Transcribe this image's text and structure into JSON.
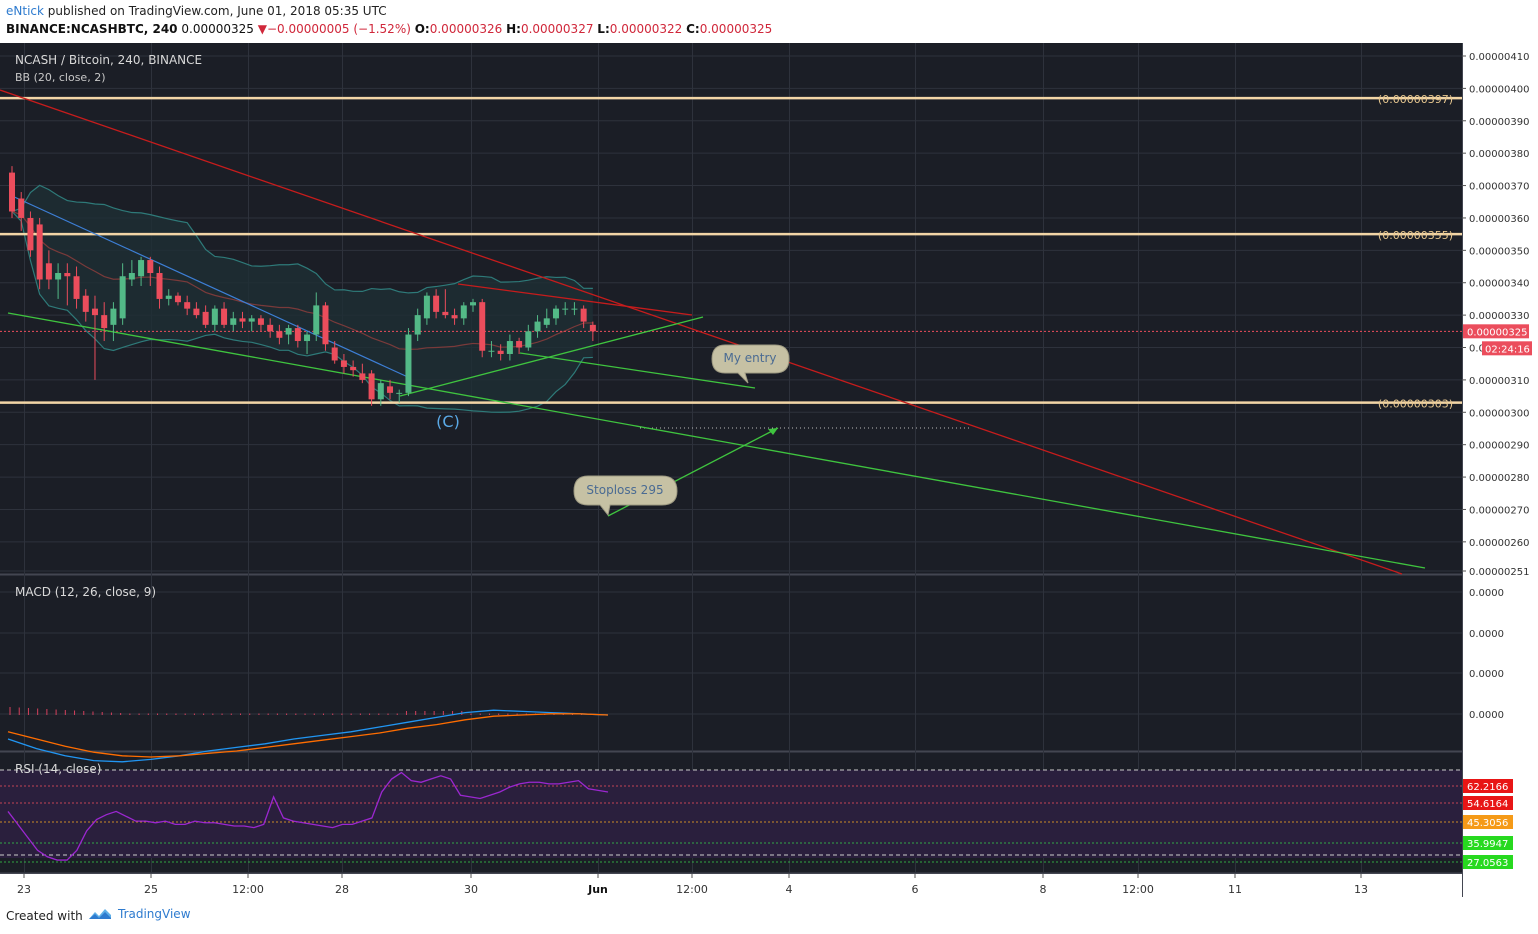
{
  "header": {
    "author": "eNtick",
    "published_text": "published on TradingView.com, June 01, 2018 05:35 UTC",
    "symbol": "BINANCE:NCASHBTC, 240",
    "last": "0.00000325",
    "change": "−0.00000005 (−1.52%)",
    "o_label": "O:",
    "o": "0.00000326",
    "h_label": "H:",
    "h": "0.00000327",
    "l_label": "L:",
    "l": "0.00000322",
    "c_label": "C:",
    "c": "0.00000325"
  },
  "footer": {
    "created": "Created with",
    "brand": "TradingView"
  },
  "colors": {
    "background": "#1b1e26",
    "grid": "#2e323c",
    "up": "#53b987",
    "down": "#eb4d5c",
    "bb_band": "#2e7a79",
    "bb_fill": "#1e2e35",
    "bb_basis": "#7a3a3a",
    "level_line": "#f2d5a6",
    "trend_red": "#c61c1c",
    "trend_green": "#3fc43f",
    "macd_line": "#2196f3",
    "signal_line": "#ff6d00",
    "hist": "#d4405c",
    "rsi": "#9b27d0",
    "callout_bg": "#c6c1a4",
    "callout_text": "#4a6b93"
  },
  "chart_data": [
    {
      "type": "candlestick",
      "title": "NCASH / Bitcoin, 240, BINANCE",
      "indicator": "BB (20, close, 2)",
      "ylim": [
        2.51e-06,
        4.12e-06
      ],
      "y_ticks": [
        "0.00000410",
        "0.00000400",
        "0.00000390",
        "0.00000380",
        "0.00000370",
        "0.00000360",
        "0.00000350",
        "0.00000340",
        "0.00000330",
        "0.00000320",
        "0.00000310",
        "0.00000300",
        "0.00000290",
        "0.00000280",
        "0.00000270",
        "0.00000260",
        "0.00000251"
      ],
      "last_price_label": "0.00000325",
      "countdown_label": "02:24:16",
      "x_ticks": [
        "23",
        "25",
        "12:00",
        "28",
        "30",
        "Jun",
        "12:00",
        "4",
        "6",
        "8",
        "12:00",
        "11",
        "13"
      ],
      "candles": [
        {
          "o": 374,
          "h": 376,
          "l": 360,
          "c": 362
        },
        {
          "o": 366,
          "h": 368,
          "l": 356,
          "c": 360
        },
        {
          "o": 360,
          "h": 362,
          "l": 348,
          "c": 350
        },
        {
          "o": 358,
          "h": 360,
          "l": 338,
          "c": 341
        },
        {
          "o": 346,
          "h": 350,
          "l": 338,
          "c": 341
        },
        {
          "o": 341,
          "h": 346,
          "l": 335,
          "c": 343
        },
        {
          "o": 343,
          "h": 346,
          "l": 333,
          "c": 342
        },
        {
          "o": 342,
          "h": 345,
          "l": 332,
          "c": 335
        },
        {
          "o": 336,
          "h": 338,
          "l": 328,
          "c": 331
        },
        {
          "o": 332,
          "h": 336,
          "l": 310,
          "c": 330
        },
        {
          "o": 330,
          "h": 334,
          "l": 322,
          "c": 326
        },
        {
          "o": 327,
          "h": 334,
          "l": 322,
          "c": 332
        },
        {
          "o": 329,
          "h": 346,
          "l": 327,
          "c": 342
        },
        {
          "o": 341,
          "h": 347,
          "l": 339,
          "c": 343
        },
        {
          "o": 342,
          "h": 348,
          "l": 339,
          "c": 347
        },
        {
          "o": 347,
          "h": 348,
          "l": 339,
          "c": 343
        },
        {
          "o": 343,
          "h": 345,
          "l": 332,
          "c": 335
        },
        {
          "o": 335,
          "h": 338,
          "l": 333,
          "c": 336
        },
        {
          "o": 336,
          "h": 337,
          "l": 333,
          "c": 334
        },
        {
          "o": 334,
          "h": 336,
          "l": 330,
          "c": 332
        },
        {
          "o": 332,
          "h": 334,
          "l": 329,
          "c": 330
        },
        {
          "o": 331,
          "h": 333,
          "l": 326,
          "c": 327
        },
        {
          "o": 327,
          "h": 333,
          "l": 325,
          "c": 332
        },
        {
          "o": 332,
          "h": 334,
          "l": 326,
          "c": 327
        },
        {
          "o": 327,
          "h": 331,
          "l": 325,
          "c": 329
        },
        {
          "o": 329,
          "h": 331,
          "l": 326,
          "c": 328
        },
        {
          "o": 328,
          "h": 330,
          "l": 325,
          "c": 329
        },
        {
          "o": 329,
          "h": 330,
          "l": 325,
          "c": 327
        },
        {
          "o": 327,
          "h": 329,
          "l": 323,
          "c": 325
        },
        {
          "o": 325,
          "h": 327,
          "l": 321,
          "c": 323
        },
        {
          "o": 324,
          "h": 327,
          "l": 321,
          "c": 326
        },
        {
          "o": 326,
          "h": 327,
          "l": 320,
          "c": 322
        },
        {
          "o": 322,
          "h": 325,
          "l": 318,
          "c": 324
        },
        {
          "o": 324,
          "h": 337,
          "l": 322,
          "c": 333
        },
        {
          "o": 333,
          "h": 334,
          "l": 319,
          "c": 321
        },
        {
          "o": 320,
          "h": 322,
          "l": 315,
          "c": 316
        },
        {
          "o": 316,
          "h": 318,
          "l": 312,
          "c": 314
        },
        {
          "o": 314,
          "h": 316,
          "l": 311,
          "c": 313
        },
        {
          "o": 312,
          "h": 315,
          "l": 309,
          "c": 310
        },
        {
          "o": 312,
          "h": 313,
          "l": 302,
          "c": 304
        },
        {
          "o": 304,
          "h": 310,
          "l": 302,
          "c": 309
        },
        {
          "o": 308,
          "h": 310,
          "l": 304,
          "c": 306
        },
        {
          "o": 306,
          "h": 307,
          "l": 303,
          "c": 306
        },
        {
          "o": 306,
          "h": 326,
          "l": 305,
          "c": 324
        },
        {
          "o": 324,
          "h": 332,
          "l": 322,
          "c": 330
        },
        {
          "o": 329,
          "h": 337,
          "l": 327,
          "c": 336
        },
        {
          "o": 336,
          "h": 338,
          "l": 329,
          "c": 331
        },
        {
          "o": 331,
          "h": 338,
          "l": 329,
          "c": 330
        },
        {
          "o": 330,
          "h": 332,
          "l": 327,
          "c": 329
        },
        {
          "o": 329,
          "h": 334,
          "l": 327,
          "c": 333
        },
        {
          "o": 333,
          "h": 335,
          "l": 331,
          "c": 334
        },
        {
          "o": 334,
          "h": 335,
          "l": 317,
          "c": 319
        },
        {
          "o": 319,
          "h": 322,
          "l": 317,
          "c": 319
        },
        {
          "o": 319,
          "h": 321,
          "l": 316,
          "c": 318
        },
        {
          "o": 318,
          "h": 324,
          "l": 316,
          "c": 322
        },
        {
          "o": 322,
          "h": 323,
          "l": 318,
          "c": 320
        },
        {
          "o": 320,
          "h": 327,
          "l": 319,
          "c": 325
        },
        {
          "o": 325,
          "h": 330,
          "l": 323,
          "c": 328
        },
        {
          "o": 327,
          "h": 332,
          "l": 326,
          "c": 329
        },
        {
          "o": 329,
          "h": 333,
          "l": 327,
          "c": 332
        },
        {
          "o": 332,
          "h": 334,
          "l": 330,
          "c": 332
        },
        {
          "o": 332,
          "h": 334,
          "l": 330,
          "c": 332
        },
        {
          "o": 332,
          "h": 333,
          "l": 326,
          "c": 328
        },
        {
          "o": 327,
          "h": 328,
          "l": 322,
          "c": 325
        }
      ],
      "levels": [
        {
          "value": 3.97e-06,
          "label": "(0.00000397)"
        },
        {
          "value": 3.55e-06,
          "label": "(0.00000355)"
        },
        {
          "value": 3.03e-06,
          "label": "(0.00000303)"
        }
      ],
      "annotations": [
        {
          "text": "(C)"
        },
        {
          "text": "My entry"
        },
        {
          "text": "Stoploss 295"
        }
      ]
    },
    {
      "type": "line",
      "title": "MACD (12, 26, close, 9)",
      "y_ticks": [
        "0.0000",
        "0.0000",
        "0.0000",
        "0.0000"
      ],
      "series": [
        {
          "name": "macd",
          "values": [
            -20,
            -28,
            -34,
            -38,
            -39,
            -37,
            -34,
            -30,
            -27,
            -24,
            -20,
            -17,
            -14,
            -10,
            -6,
            -2,
            2,
            4,
            3,
            2,
            1,
            0
          ]
        },
        {
          "name": "signal",
          "values": [
            -14,
            -20,
            -26,
            -31,
            -34,
            -35,
            -34,
            -32,
            -30,
            -27,
            -24,
            -21,
            -18,
            -15,
            -11,
            -8,
            -4,
            -1,
            0,
            1,
            1,
            0
          ]
        }
      ]
    },
    {
      "type": "line",
      "title": "RSI (14, close)",
      "y_ticks": [
        "62.2166",
        "54.6164",
        "45.3056",
        "35.9947",
        "27.0563"
      ],
      "series": [
        {
          "name": "rsi",
          "values": [
            38,
            30,
            22,
            14,
            10,
            8,
            8,
            14,
            26,
            33,
            36,
            38,
            35,
            32,
            32,
            31,
            32,
            30,
            30,
            32,
            31,
            31,
            30,
            29,
            29,
            28,
            30,
            47,
            34,
            32,
            31,
            30,
            29,
            28,
            30,
            30,
            32,
            34,
            50,
            58,
            62,
            57,
            56,
            58,
            60,
            58,
            48,
            47,
            46,
            48,
            50,
            53,
            55,
            56,
            56,
            55,
            55,
            56,
            57,
            52,
            51,
            50
          ]
        }
      ]
    }
  ]
}
